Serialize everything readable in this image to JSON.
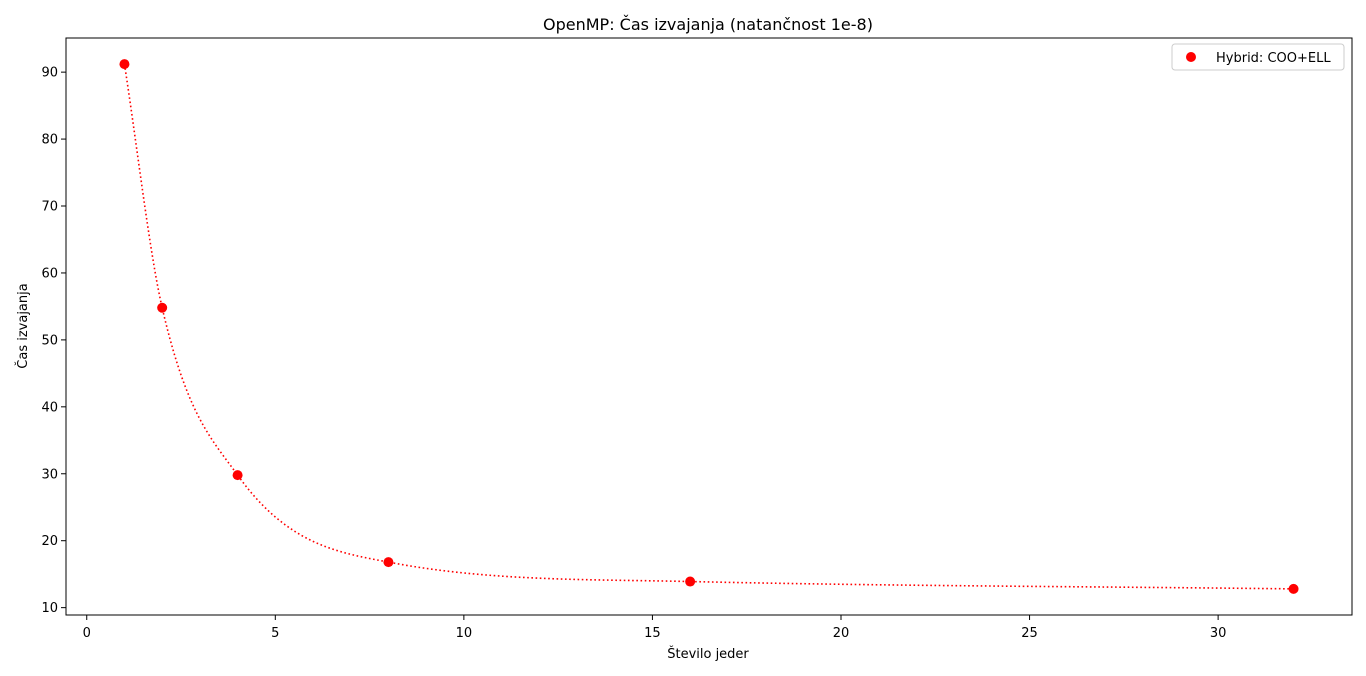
{
  "chart_data": {
    "type": "scatter",
    "title": "OpenMP: Čas izvajanja (natančnost 1e-8)",
    "xlabel": "Število jeder",
    "ylabel": "Čas izvajanja",
    "xlim": [
      -0.55,
      33.55
    ],
    "ylim": [
      8.9,
      95.1
    ],
    "xticks": [
      0,
      5,
      10,
      15,
      20,
      25,
      30
    ],
    "yticks": [
      10,
      20,
      30,
      40,
      50,
      60,
      70,
      80,
      90
    ],
    "grid": false,
    "legend_position": "top-right",
    "series": [
      {
        "name": "Hybrid: COO+ELL",
        "color": "#ff0000",
        "marker": "circle",
        "line_style": "dotted smooth curve",
        "x": [
          1,
          2,
          4,
          8,
          16,
          32
        ],
        "y": [
          91.2,
          54.8,
          29.8,
          16.8,
          13.9,
          12.8
        ]
      }
    ]
  }
}
